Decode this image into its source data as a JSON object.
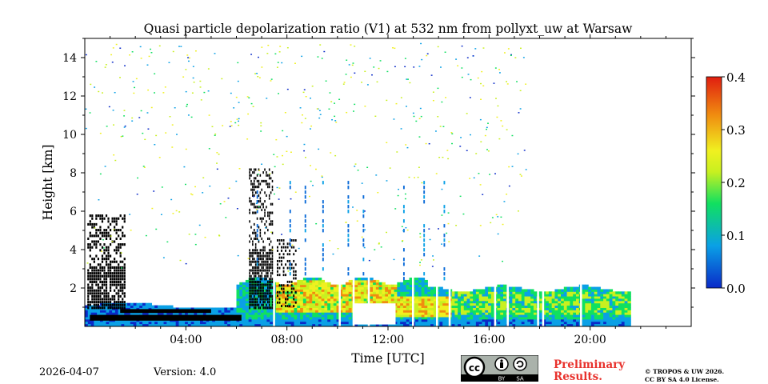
{
  "chart_data": {
    "type": "heatmap",
    "title": "Quasi particle depolarization ratio (V1) at 532 nm from pollyxt_uw at Warsaw",
    "xlabel": "Time [UTC]",
    "ylabel": "Height [km]",
    "x_range_hours": [
      0,
      24
    ],
    "y_range_km": [
      0,
      15
    ],
    "x_ticks": [
      {
        "value": 4,
        "label": "04:00"
      },
      {
        "value": 8,
        "label": "08:00"
      },
      {
        "value": 12,
        "label": "12:00"
      },
      {
        "value": 16,
        "label": "16:00"
      },
      {
        "value": 20,
        "label": "20:00"
      }
    ],
    "y_ticks": [
      {
        "value": 2,
        "label": "2"
      },
      {
        "value": 4,
        "label": "4"
      },
      {
        "value": 6,
        "label": "6"
      },
      {
        "value": 8,
        "label": "8"
      },
      {
        "value": 10,
        "label": "10"
      },
      {
        "value": 12,
        "label": "12"
      },
      {
        "value": 14,
        "label": "14"
      }
    ],
    "colorbar": {
      "range": [
        0.0,
        0.4
      ],
      "ticks": [
        {
          "value": 0.0,
          "label": "0.0"
        },
        {
          "value": 0.1,
          "label": "0.1"
        },
        {
          "value": 0.2,
          "label": "0.2"
        },
        {
          "value": 0.3,
          "label": "0.3"
        },
        {
          "value": 0.4,
          "label": "0.4"
        }
      ],
      "colors": [
        "#0a2ac8",
        "#0aa0e6",
        "#10e060",
        "#c8f020",
        "#f0f020",
        "#f08c10",
        "#e01e10"
      ]
    },
    "layers": [
      {
        "name": "boundary-layer-blue",
        "t": [
          0,
          21.6
        ],
        "h": [
          0,
          1.0
        ],
        "value": 0.03
      },
      {
        "name": "aerosol-layer",
        "t": [
          6.0,
          13.5
        ],
        "h": [
          0,
          2.5
        ],
        "value": 0.1
      },
      {
        "name": "aerosol-layer",
        "t": [
          13.5,
          21.6
        ],
        "h": [
          0,
          2.1
        ],
        "value": 0.1
      },
      {
        "name": "depol-peak",
        "t": [
          7.5,
          12.3
        ],
        "h": [
          0.6,
          2.3
        ],
        "value": 0.3
      },
      {
        "name": "depol-peak",
        "t": [
          12.0,
          14.5
        ],
        "h": [
          0.4,
          1.5
        ],
        "value": 0.28
      },
      {
        "name": "low-cloud",
        "t": [
          0,
          1.5
        ],
        "h": [
          0.9,
          5.5
        ],
        "value": null
      },
      {
        "name": "low-cloud",
        "t": [
          6.5,
          7.5
        ],
        "h": [
          0.9,
          8.0
        ],
        "value": null
      },
      {
        "name": "cloud-base",
        "t": [
          0.2,
          6.2
        ],
        "h": [
          0.3,
          1.0
        ],
        "value": null
      }
    ]
  },
  "footer": {
    "date": "2026-04-07",
    "version": "Version: 4.0",
    "license_badge": {
      "cc": "cc",
      "by": "BY",
      "sa": "SA"
    },
    "preliminary_line1": "Preliminary",
    "preliminary_line2": "Results.",
    "copyright_line1": "© TROPOS & UW 2026.",
    "copyright_line2": "CC BY SA 4.0 License."
  }
}
